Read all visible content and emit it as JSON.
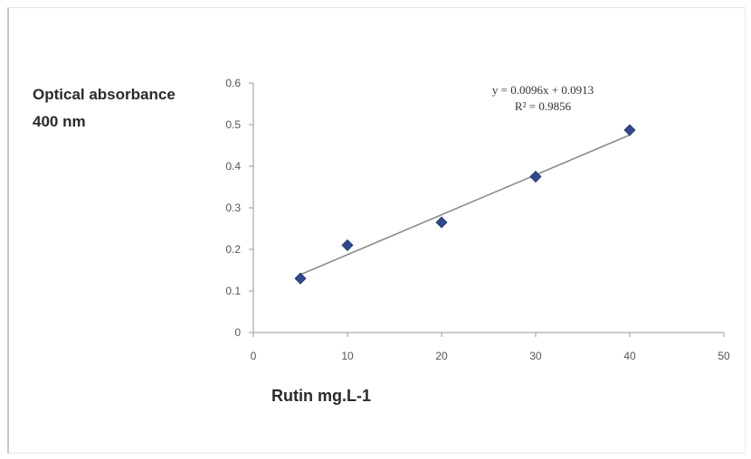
{
  "chart_data": {
    "type": "scatter",
    "title": "",
    "xlabel": "Rutin mg.L-1",
    "ylabel": "Optical absorbance 400 nm",
    "xlim": [
      0,
      50
    ],
    "ylim": [
      0,
      0.6
    ],
    "x_ticks": [
      "0",
      "10",
      "20",
      "30",
      "40",
      "50"
    ],
    "y_ticks": [
      "0",
      "0.1",
      "0.2",
      "0.3",
      "0.4",
      "0.5",
      "0.6"
    ],
    "series": [
      {
        "x": [
          5,
          10,
          20,
          30,
          40
        ],
        "y": [
          0.13,
          0.21,
          0.265,
          0.375,
          0.487
        ],
        "marker": "diamond",
        "color": "#2f4b8c"
      }
    ],
    "trendline": {
      "type": "linear",
      "slope": 0.0096,
      "intercept": 0.0913,
      "x_range": [
        5,
        40
      ],
      "color": "#8a8a8a",
      "equation_label": "y = 0.0096x + 0.0913",
      "r2_label": "R² = 0.9856"
    },
    "grid": false,
    "legend": "none"
  }
}
